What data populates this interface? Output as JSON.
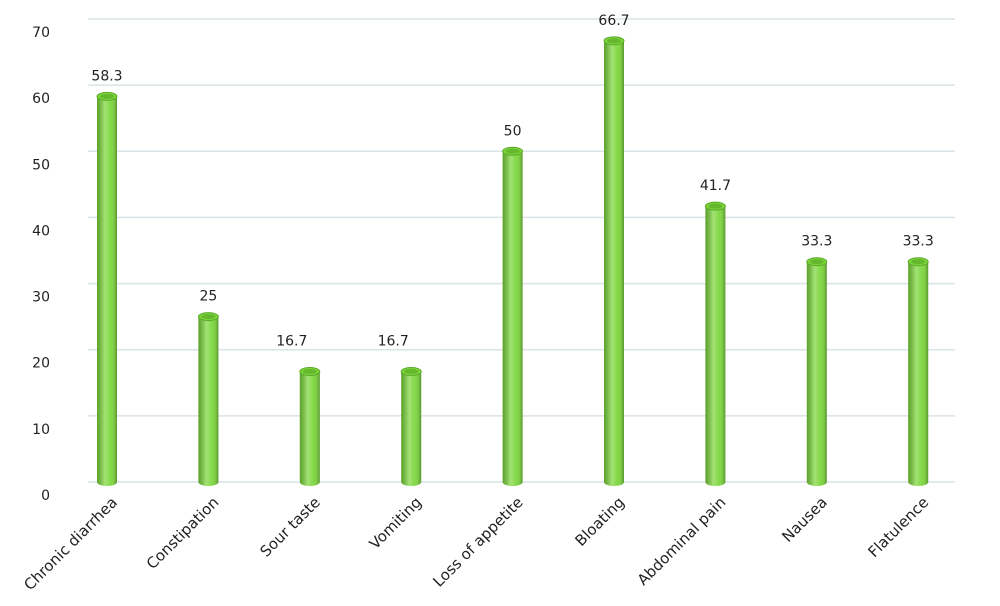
{
  "chart_data": {
    "type": "bar",
    "categories": [
      "Chronic diarrhea",
      "Constipation",
      "Sour taste",
      "Vomiting",
      "Loss of appetite",
      "Bloating",
      "Abdominal pain",
      "Nausea",
      "Flatulence"
    ],
    "values": [
      58.3,
      25,
      16.7,
      16.7,
      50,
      66.7,
      41.7,
      33.3,
      33.3
    ],
    "color": "#7bd63a",
    "ylim": [
      0,
      70
    ],
    "yticks": [
      0,
      10,
      20,
      30,
      40,
      50,
      60,
      70
    ],
    "grid": true
  }
}
